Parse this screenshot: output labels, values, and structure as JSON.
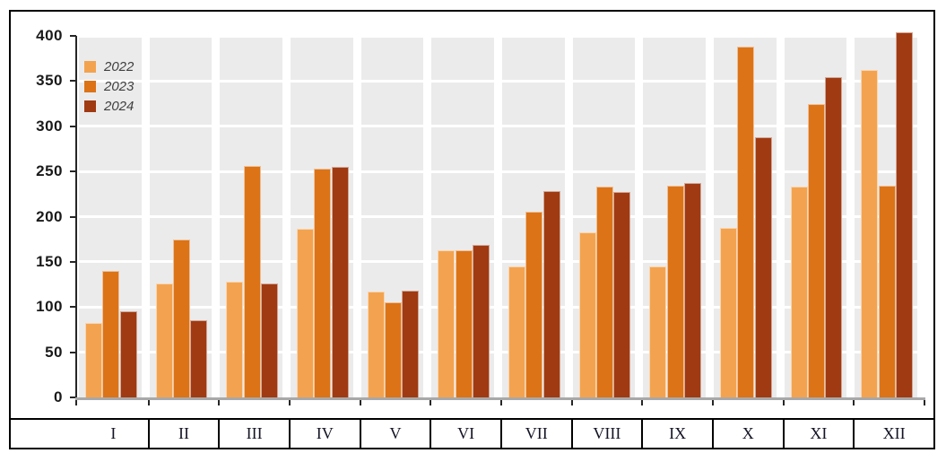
{
  "chart_data": {
    "type": "bar",
    "title": "",
    "xlabel": "",
    "ylabel": "",
    "categories": [
      "I",
      "II",
      "III",
      "IV",
      "V",
      "VI",
      "VII",
      "VIII",
      "IX",
      "X",
      "XI",
      "XII"
    ],
    "series": [
      {
        "name": "2022",
        "color": "#F3A34F",
        "values": [
          82,
          126,
          128,
          187,
          117,
          163,
          145,
          183,
          145,
          188,
          233,
          362
        ]
      },
      {
        "name": "2023",
        "color": "#DC7317",
        "values": [
          140,
          175,
          256,
          253,
          105,
          163,
          205,
          233,
          234,
          388,
          325,
          234
        ]
      },
      {
        "name": "2024",
        "color": "#A03A12",
        "values": [
          95,
          85,
          126,
          255,
          118,
          169,
          228,
          227,
          237,
          288,
          354,
          404
        ]
      }
    ],
    "ylim": [
      0,
      400
    ],
    "ytick_step": 50,
    "y_tick_labels": [
      "0",
      "50",
      "100",
      "150",
      "200",
      "250",
      "300",
      "350",
      "400"
    ],
    "legend_position": "top-left-inside",
    "grid": "horizontal white gridlines over gray category bands"
  },
  "colors": {
    "band": "#ebebec",
    "gridline": "#ffffff",
    "axis": "#262626",
    "x_axis_line": "#a8a8a8",
    "frame_border": "#000000",
    "y_label_text": "#1a1a1a",
    "legend_text": "#3f3f3f",
    "month_text": "#131324"
  }
}
